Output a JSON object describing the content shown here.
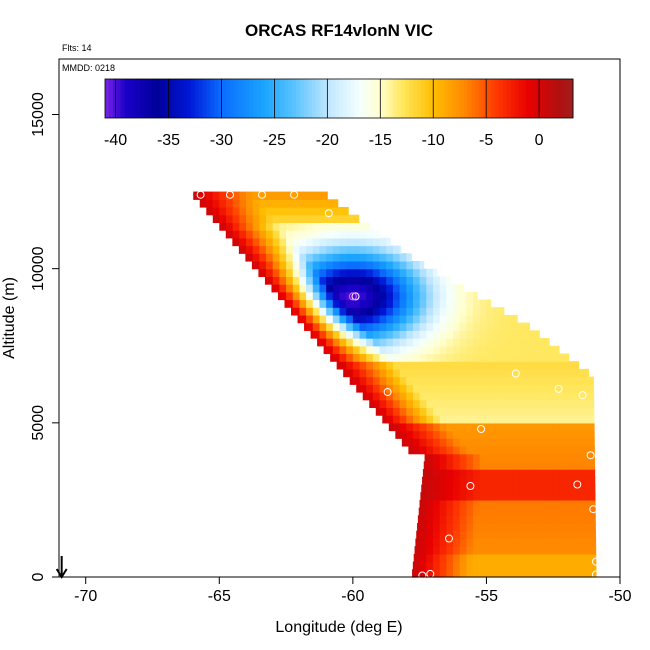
{
  "chart_data": {
    "type": "heatmap",
    "title": "ORCAS RF14vlonN VIC",
    "xlabel": "Longitude (deg E)",
    "ylabel": "Altitude (m)",
    "xlim": [
      -71,
      -50
    ],
    "ylim": [
      0,
      16800
    ],
    "xticks": [
      -70,
      -65,
      -60,
      -55,
      -50
    ],
    "yticks": [
      0,
      5000,
      10000,
      15000
    ],
    "notes": {
      "flights": "Flts: 14",
      "date": "MMDD: 0218"
    },
    "colorbar": {
      "range": [
        -41,
        3.2
      ],
      "ticks": [
        -40,
        -35,
        -30,
        -25,
        -20,
        -15,
        -10,
        -5,
        0
      ],
      "placement": "top inside plot",
      "stops": [
        {
          "v": -41,
          "c": "#7a22e8"
        },
        {
          "v": -39,
          "c": "#1a00c8"
        },
        {
          "v": -36,
          "c": "#00009a"
        },
        {
          "v": -33,
          "c": "#0018d8"
        },
        {
          "v": -30,
          "c": "#0a6cff"
        },
        {
          "v": -26,
          "c": "#1aa4ff"
        },
        {
          "v": -23,
          "c": "#5cc4ff"
        },
        {
          "v": -20,
          "c": "#bfe6ff"
        },
        {
          "v": -17,
          "c": "#f4ffff"
        },
        {
          "v": -15,
          "c": "#ffffd0"
        },
        {
          "v": -13,
          "c": "#ffe860"
        },
        {
          "v": -10,
          "c": "#ffbe00"
        },
        {
          "v": -7,
          "c": "#ff8800"
        },
        {
          "v": -4,
          "c": "#ff3800"
        },
        {
          "v": -1,
          "c": "#e80000"
        },
        {
          "v": 2,
          "c": "#b01010"
        },
        {
          "v": 3.2,
          "c": "#a02020"
        }
      ]
    },
    "field": {
      "description_values": "temperature field (deg C) over longitude/altitude",
      "warm_edge_value": 1,
      "cold_core": {
        "lon": -60,
        "alt": 9100,
        "value": -40
      },
      "top_value": -4
    },
    "observations": [
      {
        "lon": -65.7,
        "alt": 12400
      },
      {
        "lon": -64.6,
        "alt": 12400
      },
      {
        "lon": -63.4,
        "alt": 12400
      },
      {
        "lon": -62.2,
        "alt": 12400
      },
      {
        "lon": -60.9,
        "alt": 11800
      },
      {
        "lon": -59.9,
        "alt": 9100
      },
      {
        "lon": -58.7,
        "alt": 6000
      },
      {
        "lon": -53.9,
        "alt": 6600
      },
      {
        "lon": -52.3,
        "alt": 6100
      },
      {
        "lon": -51.4,
        "alt": 5900
      },
      {
        "lon": -55.2,
        "alt": 4800
      },
      {
        "lon": -51.1,
        "alt": 3950
      },
      {
        "lon": -57.9,
        "alt": 3000
      },
      {
        "lon": -55.6,
        "alt": 2950
      },
      {
        "lon": -51.6,
        "alt": 3000
      },
      {
        "lon": -51.0,
        "alt": 2200
      },
      {
        "lon": -56.4,
        "alt": 1250
      },
      {
        "lon": -50.9,
        "alt": 500
      },
      {
        "lon": -57.1,
        "alt": 100
      },
      {
        "lon": -57.4,
        "alt": 50
      },
      {
        "lon": -50.9,
        "alt": 80
      }
    ],
    "arrow_at_lon": -70.9
  }
}
